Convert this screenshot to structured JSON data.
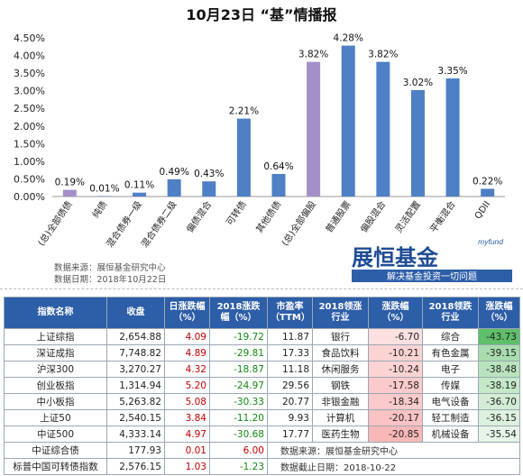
{
  "chart_data": {
    "type": "bar",
    "title": "10月23日 “基”情播报",
    "categories": [
      "(总)全部债债",
      "纯债",
      "混合债券一级",
      "混合债券二级",
      "偏债混合",
      "可转债",
      "其他债债",
      "(总)全部偏股",
      "普通股票",
      "偏股混合",
      "灵活配置",
      "平衡混合",
      "QDII"
    ],
    "values": [
      0.19,
      0.01,
      0.11,
      0.49,
      0.43,
      2.21,
      0.64,
      3.82,
      4.28,
      3.82,
      3.02,
      3.35,
      0.22
    ],
    "value_labels": [
      "0.19%",
      "0.01%",
      "0.11%",
      "0.49%",
      "0.43%",
      "2.21%",
      "0.64%",
      "3.82%",
      "4.28%",
      "3.82%",
      "3.02%",
      "3.35%",
      "0.22%"
    ],
    "highlight": [
      0,
      7
    ],
    "ylim": [
      0,
      4.5
    ],
    "yticks": [
      "0.00%",
      "0.50%",
      "1.00%",
      "1.50%",
      "2.00%",
      "2.50%",
      "3.00%",
      "3.50%",
      "4.00%",
      "4.50%"
    ],
    "colors": {
      "bar": "#4f7fc4",
      "highlight": "#a390c8"
    },
    "grid": false
  },
  "source": {
    "line1": "数据来源：展恒基金研究中心",
    "line2": "数据日期：2018年10月22日"
  },
  "logo": {
    "small": "myfund",
    "main": "展恒基金",
    "slogan": "解决基金投资一切问题"
  },
  "table": {
    "headers": [
      "指数名称",
      "收盘",
      "日涨跌幅（%）",
      "2018涨跌幅（%）",
      "市盈率（TTM）",
      "2018领涨行业",
      "涨跌幅（%）",
      "2018领跌行业",
      "涨跌幅（%）"
    ],
    "rows": [
      {
        "name": "上证综指",
        "close": "2,654.88",
        "day": "4.09",
        "ytd": "-19.72",
        "pe": "11.87",
        "up_ind": "银行",
        "up_chg": "-6.70",
        "down_ind": "综合",
        "down_chg": "-43.73"
      },
      {
        "name": "深证成指",
        "close": "7,748.82",
        "day": "4.89",
        "ytd": "-29.81",
        "pe": "17.33",
        "up_ind": "食品饮料",
        "up_chg": "-10.21",
        "down_ind": "有色金属",
        "down_chg": "-39.15"
      },
      {
        "name": "沪深300",
        "close": "3,270.27",
        "day": "4.32",
        "ytd": "-18.87",
        "pe": "11.18",
        "up_ind": "休闲服务",
        "up_chg": "-10.24",
        "down_ind": "电子",
        "down_chg": "-38.48"
      },
      {
        "name": "创业板指",
        "close": "1,314.94",
        "day": "5.20",
        "ytd": "-24.97",
        "pe": "29.56",
        "up_ind": "钢铁",
        "up_chg": "-17.58",
        "down_ind": "传媒",
        "down_chg": "-38.19"
      },
      {
        "name": "中小板指",
        "close": "5,263.82",
        "day": "5.08",
        "ytd": "-30.33",
        "pe": "20.77",
        "up_ind": "非银金融",
        "up_chg": "-18.34",
        "down_ind": "电气设备",
        "down_chg": "-36.70"
      },
      {
        "name": "上证50",
        "close": "2,540.15",
        "day": "3.84",
        "ytd": "-11.20",
        "pe": "9.93",
        "up_ind": "计算机",
        "up_chg": "-20.17",
        "down_ind": "轻工制造",
        "down_chg": "-36.15"
      },
      {
        "name": "中证500",
        "close": "4,333.14",
        "day": "4.97",
        "ytd": "-30.68",
        "pe": "17.77",
        "up_ind": "医药生物",
        "up_chg": "-20.85",
        "down_ind": "机械设备",
        "down_chg": "-35.54"
      }
    ],
    "extra_rows": [
      {
        "name": "中证综合债",
        "close": "177.93",
        "day": "0.01",
        "ytd": "6.00"
      },
      {
        "name": "标普中国可转债指数",
        "close": "2,576.15",
        "day": "1.03",
        "ytd": "-1.23"
      }
    ],
    "footer": {
      "source": "数据来源：展恒基金研究中心",
      "date": "数据截止日期：2018-10-22"
    },
    "up_colors": [
      "#fde0e0",
      "#fcd3d3",
      "#fcd3d3",
      "#fbcaca",
      "#fbcaca",
      "#fbc3c3",
      "#f9b8b8"
    ],
    "down_colors": [
      "#5fbf6a",
      "#a9dcae",
      "#b9e3bd",
      "#c5e8c8",
      "#d2edd4",
      "#dcf1de",
      "#e6f5e8"
    ]
  }
}
